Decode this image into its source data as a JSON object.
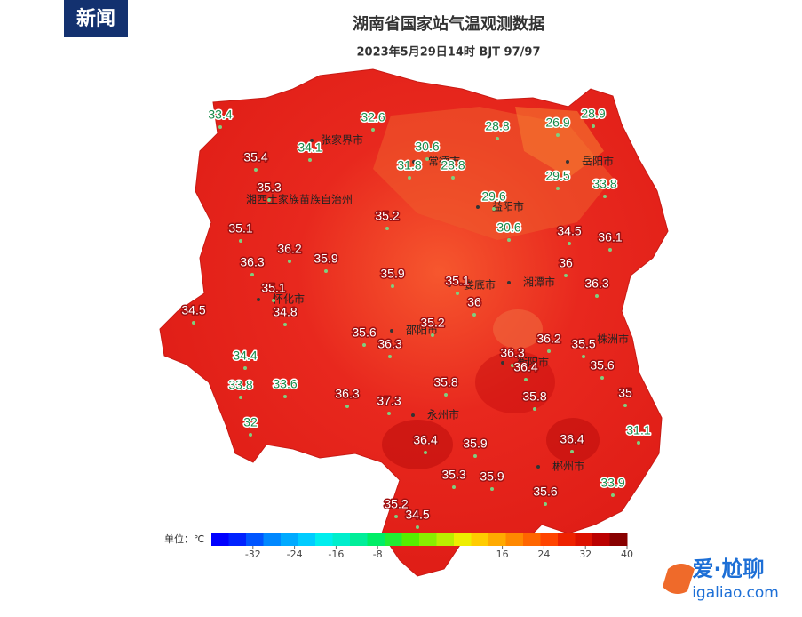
{
  "logo": "新闻",
  "header": {
    "title": "湖南省国家站气温观测数据",
    "subtitle": "2023年5月29日14时 BJT 97/97"
  },
  "map": {
    "stations": [
      {
        "value": 33.4
      },
      {
        "value": 32.6
      },
      {
        "value": 34.1
      },
      {
        "value": 30.6
      },
      {
        "value": 28.8
      },
      {
        "value": 26.9
      },
      {
        "value": 28.9
      },
      {
        "value": 35.4
      },
      {
        "value": 31.8
      },
      {
        "value": 28.8
      },
      {
        "value": 29.5
      },
      {
        "value": 33.8
      },
      {
        "value": 35.3
      },
      {
        "value": 29.6
      },
      {
        "value": 35.2
      },
      {
        "value": 35.1
      },
      {
        "value": 30.6
      },
      {
        "value": 34.5
      },
      {
        "value": 36.1
      },
      {
        "value": 36.2
      },
      {
        "value": 36.3
      },
      {
        "value": 35.9
      },
      {
        "value": 36
      },
      {
        "value": 35.9
      },
      {
        "value": 35.1
      },
      {
        "value": 36.3
      },
      {
        "value": 35.1
      },
      {
        "value": 36
      },
      {
        "value": 34.8
      },
      {
        "value": 34.5
      },
      {
        "value": 35.2
      },
      {
        "value": 35.6
      },
      {
        "value": 36.3
      },
      {
        "value": 36.2
      },
      {
        "value": 35.5
      },
      {
        "value": 34.4
      },
      {
        "value": 36.3
      },
      {
        "value": 36.4
      },
      {
        "value": 35.6
      },
      {
        "value": 33.8
      },
      {
        "value": 33.6
      },
      {
        "value": 36.3
      },
      {
        "value": 37.3
      },
      {
        "value": 35.8
      },
      {
        "value": 35.8
      },
      {
        "value": 35
      },
      {
        "value": 32
      },
      {
        "value": 31.1
      },
      {
        "value": 36.4
      },
      {
        "value": 35.9
      },
      {
        "value": 36.4
      },
      {
        "value": 35.3
      },
      {
        "value": 35.9
      },
      {
        "value": 33.9
      },
      {
        "value": 35.6
      },
      {
        "value": 35.2
      },
      {
        "value": 34.5
      }
    ],
    "cities": [
      "张家界市",
      "常德市",
      "岳阳市",
      "湘西土家族苗族自治州",
      "益阳市",
      "湘潭市",
      "怀化市",
      "娄底市",
      "邵阳市",
      "株洲市",
      "衡阳市",
      "永州市",
      "郴州市"
    ]
  },
  "colorbar": {
    "label": "单位：℃",
    "lim": [
      -40,
      40
    ],
    "ticks": [
      -32,
      -24,
      -16,
      -8,
      16,
      24,
      32,
      40
    ],
    "colors": [
      "#0000ff",
      "#0022ff",
      "#0055ff",
      "#0088ff",
      "#00aaff",
      "#00ccff",
      "#00eeee",
      "#00eecc",
      "#00ee99",
      "#00ee66",
      "#22ee33",
      "#55ee00",
      "#88ee00",
      "#bbee00",
      "#eeee00",
      "#ffcc00",
      "#ffaa00",
      "#ff8800",
      "#ff6600",
      "#ff4400",
      "#ee2200",
      "#dd1100",
      "#bb0000",
      "#880000"
    ]
  },
  "watermark": {
    "name": "爱·尬聊",
    "url": "igaliao.com"
  }
}
